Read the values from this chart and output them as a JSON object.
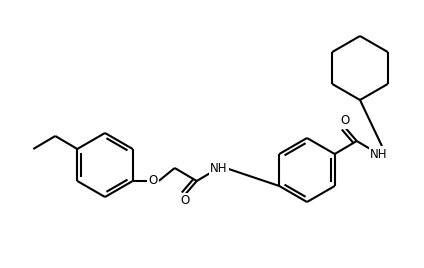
{
  "figsize": [
    4.24,
    2.68
  ],
  "dpi": 100,
  "bg": "#ffffff",
  "lc": "#000000",
  "lw": 1.5,
  "xlim": [
    0,
    424
  ],
  "ylim": [
    0,
    268
  ]
}
